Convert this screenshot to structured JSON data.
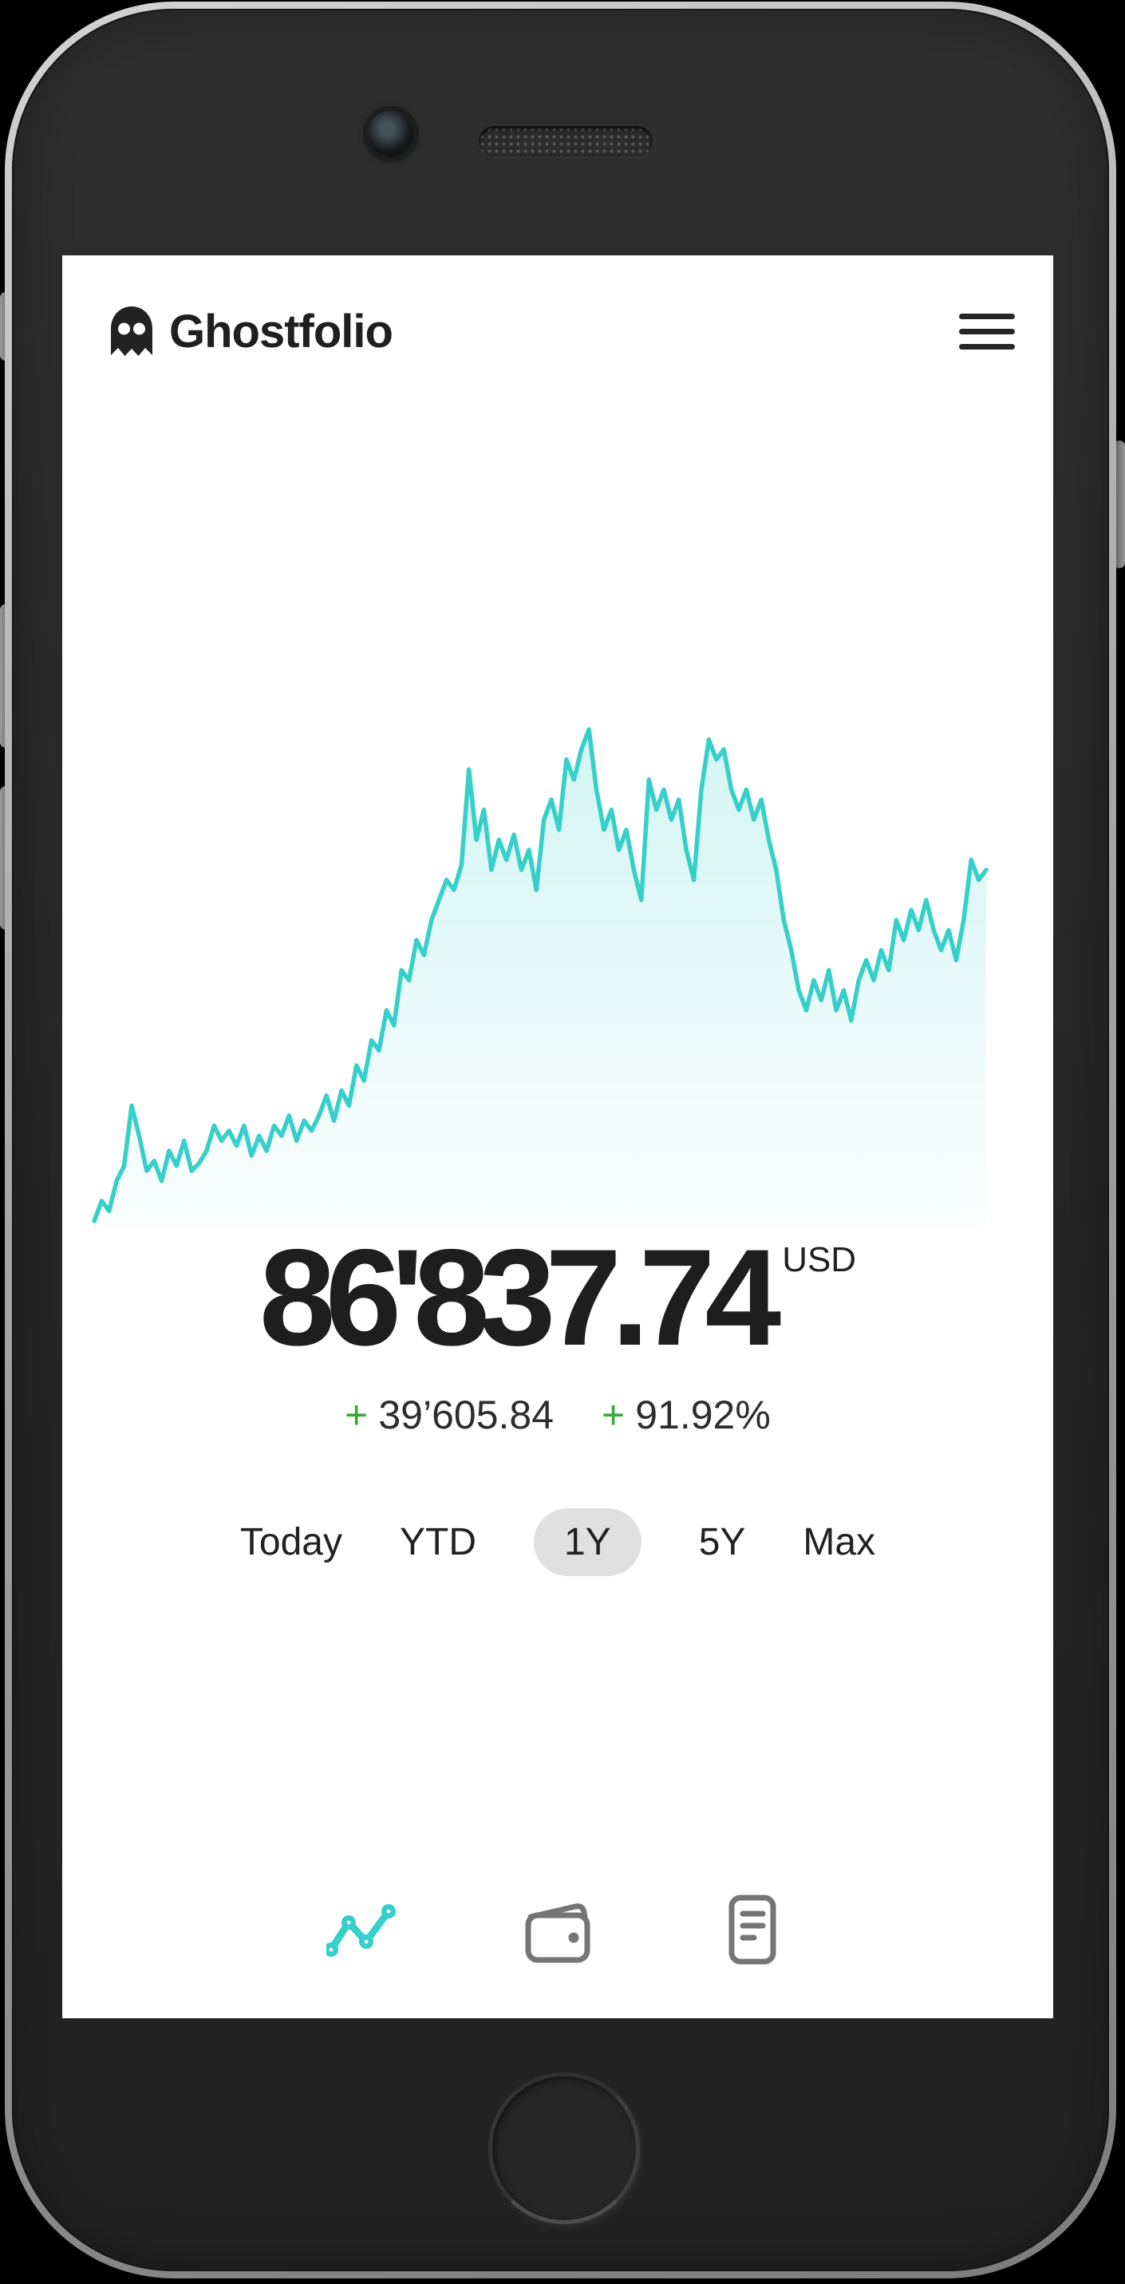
{
  "app": {
    "title": "Ghostfolio"
  },
  "portfolio": {
    "value": "86'837.74",
    "currency": "USD",
    "change_sign": "+",
    "change_absolute": "39’605.84",
    "change_percent": "91.92%"
  },
  "range_selector": {
    "options": [
      "Today",
      "YTD",
      "1Y",
      "5Y",
      "Max"
    ],
    "selected": "1Y"
  },
  "bottom_nav": {
    "items": [
      "performance-chart-icon",
      "wallet-icon",
      "transactions-icon"
    ],
    "active": "performance-chart-icon"
  },
  "colors": {
    "accent": "#36cfc9",
    "positive": "#3da53c",
    "text": "#212121",
    "nav_inactive": "#757575",
    "pill_bg": "#e0e0e0"
  },
  "chart_data": {
    "type": "area",
    "title": "",
    "xlabel": "",
    "ylabel": "",
    "unit": "USD",
    "range": "1Y",
    "grid": false,
    "legend": false,
    "axes_visible": false,
    "ylim": [
      43000,
      104000
    ],
    "values": [
      45190,
      47570,
      46380,
      49950,
      51740,
      58880,
      55300,
      51140,
      52330,
      49950,
      53520,
      51740,
      54710,
      51140,
      52030,
      53520,
      56500,
      54710,
      55900,
      54120,
      56500,
      52930,
      55300,
      53520,
      56500,
      55300,
      57690,
      54710,
      57090,
      55900,
      57690,
      60070,
      57090,
      60660,
      58880,
      63640,
      61850,
      66610,
      65420,
      70180,
      68400,
      74940,
      73750,
      78510,
      76730,
      80890,
      83270,
      85650,
      84460,
      87440,
      98740,
      90410,
      93980,
      86840,
      90410,
      88030,
      91010,
      86840,
      89220,
      84460,
      92790,
      95170,
      91600,
      99930,
      97550,
      101120,
      103500,
      96360,
      91600,
      93980,
      89220,
      91600,
      86840,
      83270,
      97550,
      93980,
      96360,
      92790,
      95170,
      89220,
      85650,
      96360,
      102310,
      99930,
      101120,
      96360,
      93980,
      96360,
      92790,
      95170,
      90410,
      86840,
      80890,
      77320,
      72560,
      70180,
      73750,
      71370,
      74940,
      70180,
      72560,
      68990,
      73750,
      76130,
      73750,
      77320,
      74940,
      80890,
      78510,
      82080,
      79700,
      83270,
      79700,
      77320,
      79700,
      76130,
      80890,
      88030,
      85650,
      86838
    ]
  }
}
